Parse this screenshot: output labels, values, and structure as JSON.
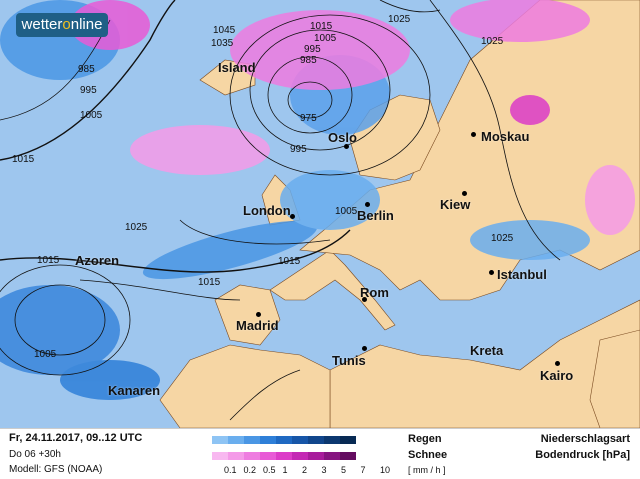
{
  "logo": {
    "text_a": "wetter",
    "text_o": "o",
    "text_b": "nline"
  },
  "cities": [
    {
      "name": "Island"
    },
    {
      "name": "Oslo"
    },
    {
      "name": "Moskau"
    },
    {
      "name": "London"
    },
    {
      "name": "Berlin"
    },
    {
      "name": "Kiew"
    },
    {
      "name": "Azoren"
    },
    {
      "name": "Istanbul"
    },
    {
      "name": "Rom"
    },
    {
      "name": "Madrid"
    },
    {
      "name": "Tunis"
    },
    {
      "name": "Kreta"
    },
    {
      "name": "Kairo"
    },
    {
      "name": "Kanaren"
    }
  ],
  "isobars": [
    "1045",
    "1035",
    "985",
    "995",
    "1005",
    "1015",
    "1025",
    "1015",
    "1015",
    "1005",
    "1015",
    "1005",
    "995",
    "985",
    "975",
    "995",
    "1025",
    "1025",
    "1005",
    "1015",
    "1025"
  ],
  "footer": {
    "date": "Fr, 24.11.2017, 09..12 UTC",
    "run": "Do 06 +30h",
    "model": "Modell: GFS (NOAA)",
    "rain": "Regen",
    "snow": "Schnee",
    "unit": "[ mm / h ]",
    "title1": "Niederschlagsart",
    "title2": "Bodendruck [hPa]",
    "ticks": [
      "0.1",
      "0.2",
      "0.5",
      "1",
      "2",
      "3",
      "5",
      "7",
      "10"
    ],
    "rain_colors": [
      "#8ec4f4",
      "#6aaeee",
      "#4a96e4",
      "#2e7fd8",
      "#1f69c2",
      "#1756a8",
      "#11468c",
      "#0c3870",
      "#082a54"
    ],
    "snow_colors": [
      "#f8b8f0",
      "#f49ae8",
      "#ee7ce0",
      "#e85ad6",
      "#dc3cc8",
      "#c428b4",
      "#a81c9c",
      "#861480",
      "#640c60"
    ]
  }
}
